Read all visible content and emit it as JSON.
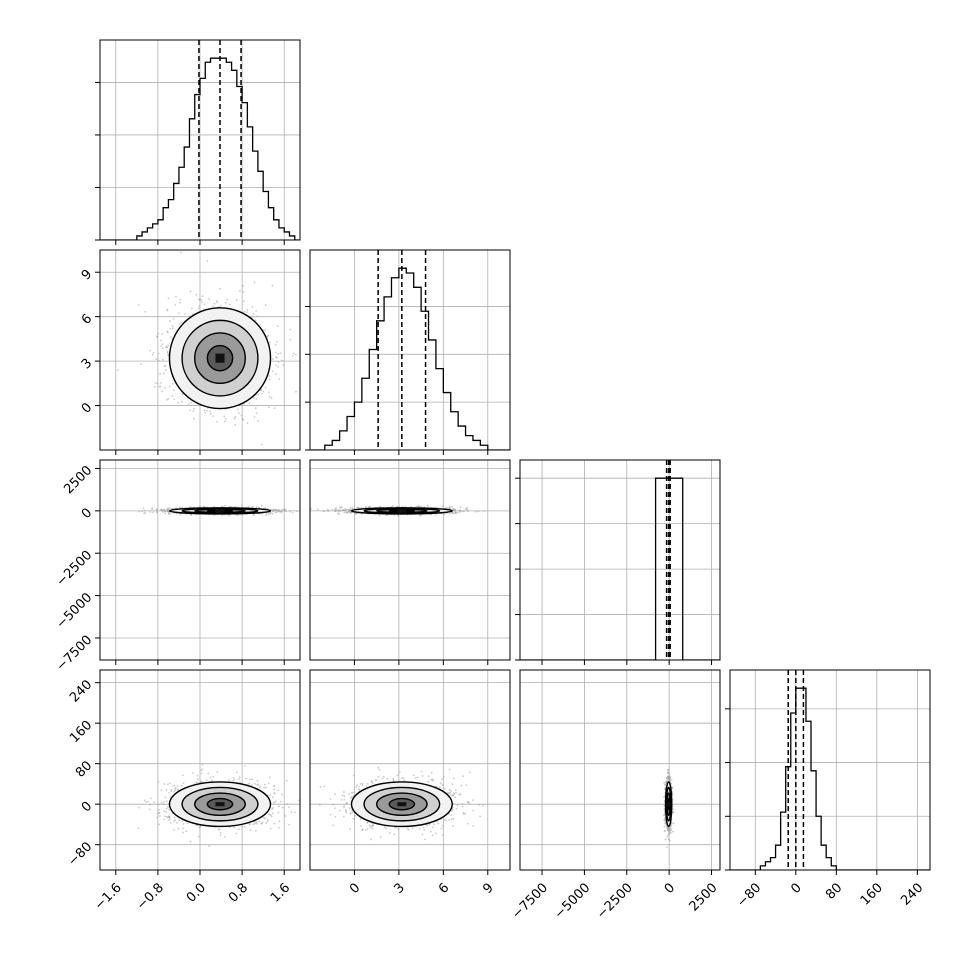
{
  "chart_data": {
    "type": "corner",
    "n_params": 4,
    "colors": {
      "line": "#000000",
      "grid": "#b0b0b0",
      "points": "#a0a0a0",
      "frame": "#000000"
    },
    "grid": true,
    "quantile_lines": "dashed",
    "x_ticks": [
      {
        "values": [
          -1.6,
          -0.8,
          0.0,
          0.8,
          1.6
        ],
        "labels": [
          "-1.6",
          "-0.8",
          "0.0",
          "0.8",
          "1.6"
        ]
      },
      {
        "values": [
          0,
          3,
          6,
          9
        ],
        "labels": [
          "0",
          "3",
          "6",
          "9"
        ]
      },
      {
        "values": [
          -7500,
          -5000,
          -2500,
          0,
          2500
        ],
        "labels": [
          "-7500",
          "-5000",
          "-2500",
          "0",
          "2500"
        ]
      },
      {
        "values": [
          -80,
          0,
          80,
          160,
          240
        ],
        "labels": [
          "-80",
          "0",
          "80",
          "160",
          "240"
        ]
      }
    ],
    "y_ticks": [
      null,
      {
        "values": [
          0,
          3,
          6,
          9
        ],
        "labels": [
          "0",
          "3",
          "6",
          "9"
        ]
      },
      {
        "values": [
          -7500,
          -5000,
          -2500,
          0,
          2500
        ],
        "labels": [
          "-7500",
          "-5000",
          "-2500",
          "0",
          "2500"
        ]
      },
      {
        "values": [
          -80,
          0,
          80,
          160,
          240
        ],
        "labels": [
          "-80",
          "0",
          "80",
          "160",
          "240"
        ]
      }
    ],
    "ranges": [
      [
        -1.9,
        1.9
      ],
      [
        -3.0,
        10.5
      ],
      [
        -8800,
        3000
      ],
      [
        -130,
        265
      ]
    ],
    "histograms": [
      {
        "param": 0,
        "bin_edges": [
          -1.9,
          -1.8,
          -1.7,
          -1.6,
          -1.5,
          -1.4,
          -1.3,
          -1.2,
          -1.1,
          -1.0,
          -0.9,
          -0.8,
          -0.7,
          -0.6,
          -0.5,
          -0.4,
          -0.3,
          -0.2,
          -0.1,
          0.0,
          0.1,
          0.2,
          0.3,
          0.4,
          0.5,
          0.6,
          0.7,
          0.8,
          0.9,
          1.0,
          1.1,
          1.2,
          1.3,
          1.4,
          1.5,
          1.6,
          1.7,
          1.8,
          1.9
        ],
        "counts": [
          0,
          0,
          0,
          0,
          0,
          0,
          0,
          1,
          2,
          3,
          4,
          5,
          8,
          10,
          14,
          18,
          23,
          30,
          36,
          40,
          44,
          45,
          45,
          45,
          44,
          42,
          38,
          34,
          28,
          22,
          17,
          12,
          8,
          5,
          3,
          2,
          1,
          0
        ],
        "ytick_counts": [
          0,
          13,
          26,
          39
        ],
        "quantiles": [
          -0.02,
          0.38,
          0.78
        ]
      },
      {
        "param": 1,
        "bin_edges": [
          -3.0,
          -2.5,
          -2.0,
          -1.5,
          -1.0,
          -0.5,
          0.0,
          0.5,
          1.0,
          1.5,
          2.0,
          2.5,
          3.0,
          3.5,
          4.0,
          4.5,
          5.0,
          5.5,
          6.0,
          6.5,
          7.0,
          7.5,
          8.0,
          8.5,
          9.0,
          9.5,
          10.0,
          10.5
        ],
        "counts": [
          0,
          0,
          1,
          2,
          4,
          7,
          10,
          15,
          21,
          27,
          32,
          36,
          38,
          37,
          34,
          29,
          23,
          17,
          12,
          8,
          5,
          3,
          2,
          1,
          0,
          0,
          0
        ],
        "ytick_counts": [
          0,
          10,
          20,
          30
        ],
        "quantiles": [
          1.6,
          3.2,
          4.8
        ]
      },
      {
        "param": 2,
        "bin_edges": [
          -8800,
          -8000,
          -7200,
          -6400,
          -5600,
          -4800,
          -4000,
          -3200,
          -2400,
          -1600,
          -800,
          0,
          800,
          1600,
          2400,
          3000
        ],
        "counts": [
          0,
          0,
          0,
          0,
          0,
          0,
          0,
          0,
          0,
          0,
          40,
          40,
          0,
          0,
          0
        ],
        "ytick_counts": [
          0,
          10,
          20,
          30,
          40
        ],
        "quantiles": [
          -150,
          -30,
          60
        ]
      },
      {
        "param": 3,
        "bin_edges": [
          -130,
          -120,
          -110,
          -100,
          -90,
          -80,
          -70,
          -60,
          -50,
          -40,
          -30,
          -20,
          -10,
          0,
          10,
          20,
          30,
          40,
          50,
          60,
          70,
          80,
          90,
          100,
          110,
          120,
          130,
          140,
          150,
          160,
          170,
          180,
          190,
          200,
          210,
          220,
          230,
          240,
          250,
          260,
          265
        ],
        "counts": [
          0,
          0,
          0,
          0,
          0,
          0,
          1,
          2,
          3,
          6,
          14,
          25,
          38,
          44,
          44,
          36,
          24,
          13,
          6,
          3,
          1,
          0,
          0,
          0,
          0,
          0,
          0,
          0,
          0,
          0,
          0,
          0,
          0,
          0,
          0,
          0,
          0,
          0,
          0,
          0
        ],
        "ytick_counts": [
          0,
          13,
          26,
          39
        ],
        "quantiles": [
          -15,
          0,
          15
        ]
      }
    ],
    "pairs": [
      {
        "x_param": 0,
        "y_param": 1,
        "center": [
          0.38,
          3.2
        ],
        "sigma": [
          0.48,
          1.7
        ]
      },
      {
        "x_param": 0,
        "y_param": 2,
        "center": [
          0.38,
          0
        ],
        "sigma": [
          0.48,
          90
        ]
      },
      {
        "x_param": 1,
        "y_param": 2,
        "center": [
          3.2,
          0
        ],
        "sigma": [
          1.7,
          90
        ]
      },
      {
        "x_param": 0,
        "y_param": 3,
        "center": [
          0.38,
          0
        ],
        "sigma": [
          0.48,
          22
        ]
      },
      {
        "x_param": 1,
        "y_param": 3,
        "center": [
          3.2,
          0
        ],
        "sigma": [
          1.7,
          22
        ]
      },
      {
        "x_param": 2,
        "y_param": 3,
        "center": [
          -30,
          0
        ],
        "sigma": [
          90,
          22
        ]
      }
    ]
  }
}
